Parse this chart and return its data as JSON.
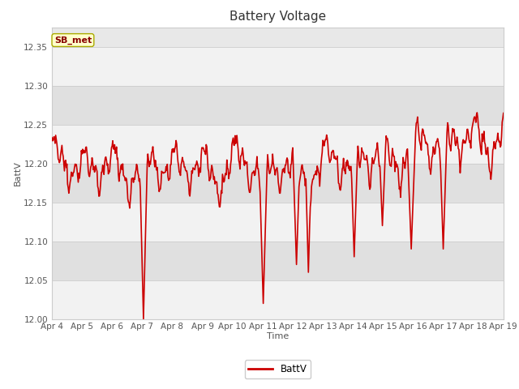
{
  "title": "Battery Voltage",
  "xlabel": "Time",
  "ylabel": "BattV",
  "ylim": [
    12.0,
    12.375
  ],
  "yticks": [
    12.0,
    12.05,
    12.1,
    12.15,
    12.2,
    12.25,
    12.3,
    12.35
  ],
  "line_color": "#cc0000",
  "line_width": 1.2,
  "fig_bg_color": "#ffffff",
  "plot_bg_color": "#e8e8e8",
  "band_color_light": "#f2f2f2",
  "band_color_dark": "#e0e0e0",
  "legend_label": "BattV",
  "legend_line_color": "#cc0000",
  "annotation_text": "SB_met",
  "annotation_bg": "#ffffcc",
  "annotation_border": "#aaaa00",
  "annotation_text_color": "#880000",
  "x_tick_labels": [
    "Apr 4",
    "Apr 5",
    "Apr 6",
    "Apr 7",
    "Apr 8",
    "Apr 9",
    "Apr 10",
    "Apr 11",
    "Apr 12",
    "Apr 13",
    "Apr 14",
    "Apr 15",
    "Apr 16",
    "Apr 17",
    "Apr 18",
    "Apr 19"
  ],
  "x_tick_positions": [
    0,
    24,
    48,
    72,
    96,
    120,
    144,
    168,
    192,
    216,
    240,
    264,
    288,
    312,
    336,
    360
  ],
  "title_fontsize": 11,
  "axis_label_fontsize": 8,
  "tick_fontsize": 7.5,
  "grid_color": "#cccccc"
}
